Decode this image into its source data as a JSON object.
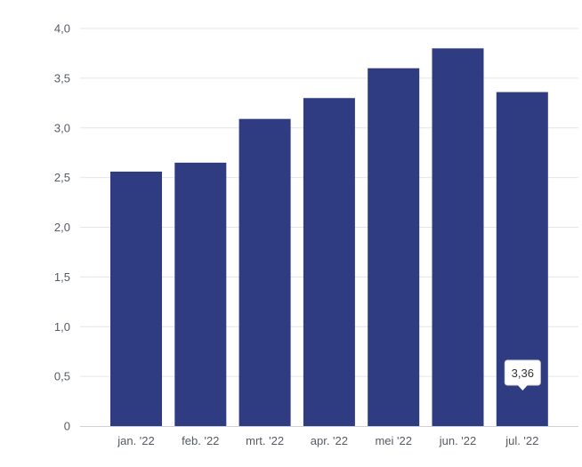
{
  "chart_data": {
    "type": "bar",
    "categories": [
      "jan. '22",
      "feb. '22",
      "mrt. '22",
      "apr. '22",
      "mei '22",
      "jun. '22",
      "jul. '22"
    ],
    "values": [
      2.56,
      2.65,
      3.09,
      3.3,
      3.6,
      3.8,
      3.36
    ],
    "ylim": [
      0,
      4
    ],
    "yticks": [
      "0",
      "0,5",
      "1,0",
      "1,5",
      "2,0",
      "2,5",
      "3,0",
      "3,5",
      "4,0"
    ],
    "grid": true,
    "bar_color": "#2f3c82",
    "gridline_color": "#e6e6e6",
    "tooltip": {
      "category": "jul. '22",
      "label": "3,36"
    }
  }
}
